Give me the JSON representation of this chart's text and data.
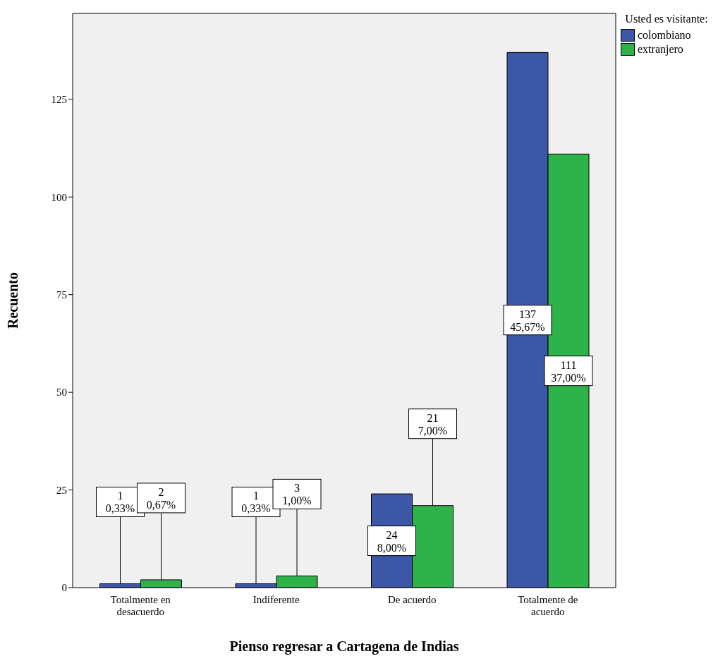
{
  "chart_data": {
    "type": "bar",
    "xlabel": "Pienso regresar a Cartagena de Indias",
    "ylabel": "Recuento",
    "legend_title": "Usted es visitante:",
    "legend": "top right",
    "categories": [
      "Totalmente en desacuerdo",
      "Indiferente",
      "De acuerdo",
      "Totalmente de acuerdo"
    ],
    "series": [
      {
        "name": "colombiano",
        "color": "#3c56a8",
        "values": [
          1,
          1,
          24,
          137
        ],
        "value_labels": [
          "1\n0,33%",
          "1\n0,33%",
          "24\n8,00%",
          "137\n45,67%"
        ]
      },
      {
        "name": "extranjero",
        "color": "#2db34a",
        "values": [
          2,
          3,
          21,
          111
        ],
        "value_labels": [
          "2\n0,67%",
          "3\n1,00%",
          "21\n7,00%",
          "111\n37,00%"
        ]
      }
    ],
    "ylim": [
      0,
      147
    ],
    "yticks": [
      0,
      25,
      50,
      75,
      100,
      125
    ]
  }
}
